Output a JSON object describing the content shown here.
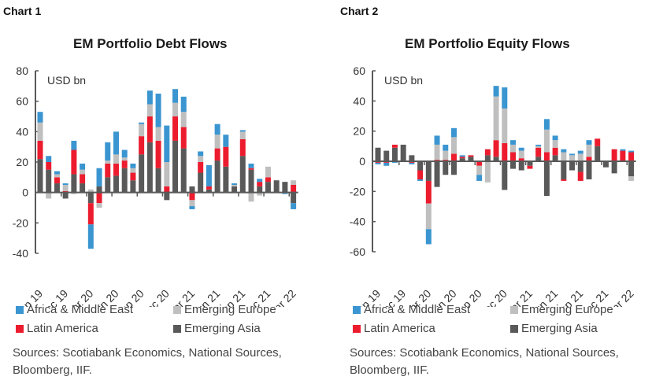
{
  "colors": {
    "africa_me": "#3a95d0",
    "latin_america": "#ec1c2e",
    "emerging_europe": "#bfbfbf",
    "emerging_asia": "#595959",
    "axis": "#595959"
  },
  "legend": [
    {
      "key": "africa_me",
      "label": "Africa & Middle East"
    },
    {
      "key": "emerging_europe",
      "label": "Emerging Europe"
    },
    {
      "key": "latin_america",
      "label": "Latin America"
    },
    {
      "key": "emerging_asia",
      "label": "Emerging Asia"
    }
  ],
  "sources": "Sources: Scotiabank Economics, National Sources, Bloomberg, IIF.",
  "chart_data": [
    {
      "label": "Chart 1",
      "type": "bar",
      "stacked": true,
      "title": "EM Portfolio Debt Flows",
      "ylabel": "USD bn",
      "ylim": [
        -40,
        80
      ],
      "yticks": [
        80,
        60,
        40,
        20,
        0,
        -20,
        -40
      ],
      "tick_labels": [
        "Sep 19",
        "Dec 19",
        "Mar 20",
        "Jun 20",
        "Sep 20",
        "Dec 20",
        "Mar 21",
        "Jun 21",
        "Sep 21",
        "Dec 21",
        "Mar 22"
      ],
      "categories": [
        "Sep 19",
        "Oct 19",
        "Nov 19",
        "Dec 19",
        "Jan 20",
        "Feb 20",
        "Mar 20",
        "Apr 20",
        "May 20",
        "Jun 20",
        "Jul 20",
        "Aug 20",
        "Sep 20",
        "Oct 20",
        "Nov 20",
        "Dec 20",
        "Jan 21",
        "Feb 21",
        "Mar 21",
        "Apr 21",
        "May 21",
        "Jun 21",
        "Jul 21",
        "Aug 21",
        "Sep 21",
        "Oct 21",
        "Nov 21",
        "Dec 21",
        "Jan 22",
        "Feb 22",
        "Mar 22"
      ],
      "series": [
        {
          "name": "Emerging Asia",
          "key": "emerging_asia",
          "values": [
            22,
            15,
            6,
            -4,
            12,
            6,
            -7,
            4,
            10,
            11,
            16,
            8,
            25,
            33,
            16,
            -5,
            34,
            29,
            4,
            13,
            2,
            21,
            17,
            4,
            24,
            15,
            4,
            7,
            8,
            7,
            -7
          ]
        },
        {
          "name": "Latin America",
          "key": "latin_america",
          "values": [
            12,
            5,
            4,
            1,
            16,
            6,
            -14,
            -7,
            9,
            8,
            5,
            5,
            12,
            17,
            18,
            4,
            16,
            14,
            -5,
            7,
            2,
            8,
            13,
            0,
            11,
            1,
            3,
            3,
            0,
            0,
            5
          ]
        },
        {
          "name": "Emerging Europe",
          "key": "emerging_europe",
          "values": [
            12,
            -4,
            2,
            4,
            -1,
            3,
            2,
            -3,
            2,
            6,
            2,
            3,
            8,
            8,
            9,
            16,
            9,
            10,
            -4,
            4,
            0,
            9,
            0,
            1,
            5,
            -6,
            -2,
            7,
            0,
            0,
            3
          ]
        },
        {
          "name": "Africa & Middle East",
          "key": "africa_me",
          "values": [
            7,
            4,
            2,
            1,
            6,
            4,
            -16,
            12,
            12,
            15,
            5,
            3,
            1,
            9,
            22,
            24,
            9,
            10,
            -2,
            3,
            14,
            7,
            8,
            1,
            1,
            3,
            2,
            0,
            0,
            -1,
            -4
          ]
        }
      ]
    },
    {
      "label": "Chart 2",
      "type": "bar",
      "stacked": true,
      "title": "EM Portfolio Equity Flows",
      "ylabel": "USD bn",
      "ylim": [
        -60,
        60
      ],
      "yticks": [
        60,
        40,
        20,
        0,
        -20,
        -40,
        -60
      ],
      "tick_labels": [
        "Sep 19",
        "Dec 19",
        "Mar 20",
        "Jun 20",
        "Sep 20",
        "Dec 20",
        "Mar 21",
        "Jun 21",
        "Sep 21",
        "Dec 21",
        "Mar 22"
      ],
      "categories": [
        "Sep 19",
        "Oct 19",
        "Nov 19",
        "Dec 19",
        "Jan 20",
        "Feb 20",
        "Mar 20",
        "Apr 20",
        "May 20",
        "Jun 20",
        "Jul 20",
        "Aug 20",
        "Sep 20",
        "Oct 20",
        "Nov 20",
        "Dec 20",
        "Jan 21",
        "Feb 21",
        "Mar 21",
        "Apr 21",
        "May 21",
        "Jun 21",
        "Jul 21",
        "Aug 21",
        "Sep 21",
        "Oct 21",
        "Nov 21",
        "Dec 21",
        "Jan 22",
        "Feb 22",
        "Mar 22"
      ],
      "series": [
        {
          "name": "Emerging Asia",
          "key": "emerging_asia",
          "values": [
            9,
            7,
            9,
            11,
            4,
            -6,
            -13,
            -17,
            -9,
            -9,
            2,
            3,
            0,
            4,
            3,
            -19,
            -5,
            -6,
            -3,
            3,
            -23,
            4,
            -12,
            -6,
            -7,
            -12,
            10,
            -4,
            -8,
            0,
            -10
          ]
        },
        {
          "name": "Latin America",
          "key": "latin_america",
          "values": [
            -1,
            -1,
            2,
            0,
            -1,
            -6,
            -15,
            1,
            1,
            5,
            1,
            1,
            -3,
            4,
            11,
            12,
            6,
            2,
            -2,
            6,
            6,
            5,
            -1,
            0,
            -6,
            3,
            5,
            0,
            8,
            7,
            6
          ]
        },
        {
          "name": "Emerging Europe",
          "key": "emerging_europe",
          "values": [
            0,
            0,
            0,
            0,
            0,
            0,
            -17,
            10,
            6,
            11,
            0,
            0,
            -6,
            -14,
            29,
            23,
            5,
            5,
            0,
            1,
            15,
            5,
            6,
            4,
            5,
            8,
            0,
            0,
            0,
            0,
            -3
          ]
        },
        {
          "name": "Africa & Middle East",
          "key": "africa_me",
          "values": [
            -1,
            -2,
            -1,
            0,
            -1,
            -1,
            -10,
            6,
            4,
            6,
            1,
            0,
            -4,
            0,
            7,
            14,
            3,
            2,
            0,
            1,
            7,
            3,
            2,
            1,
            2,
            3,
            0,
            0,
            0,
            1,
            1
          ]
        }
      ]
    }
  ]
}
